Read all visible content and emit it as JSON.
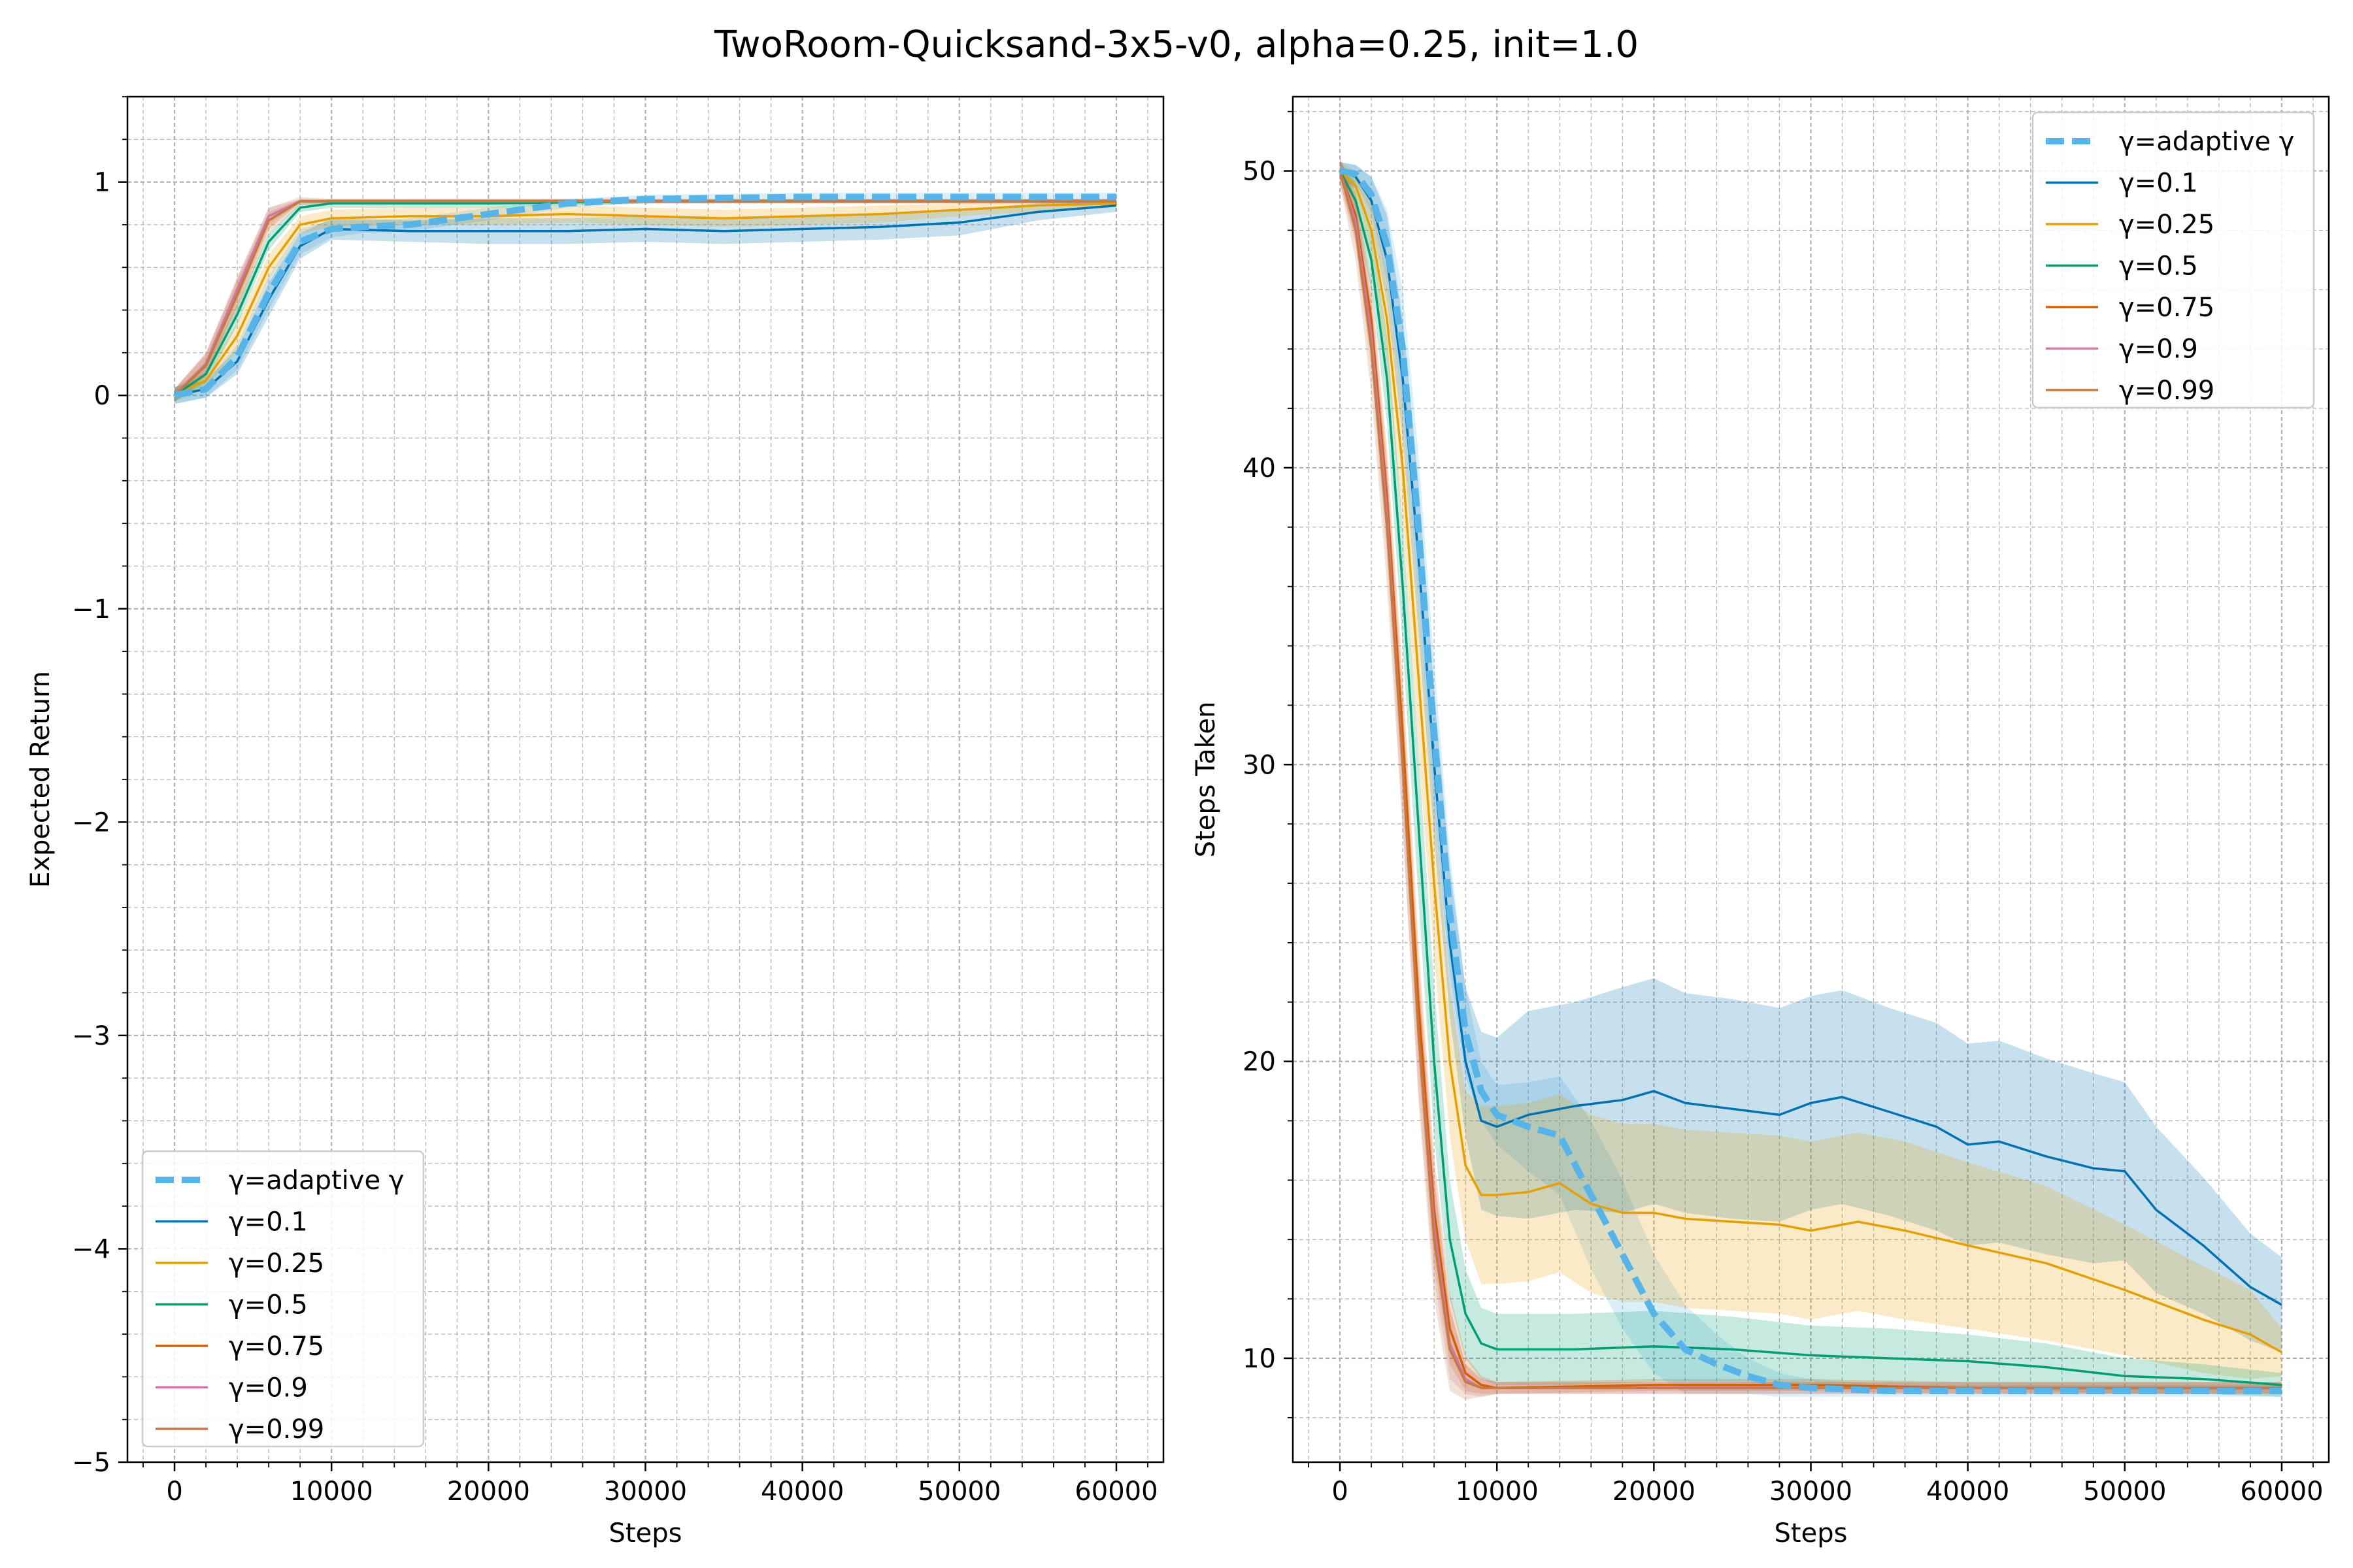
{
  "figure": {
    "suptitle": "TwoRoom-Quicksand-3x5-v0, alpha=0.25, init=1.0"
  },
  "colors": {
    "adaptive": "#56b4e9",
    "g0.1": "#0072b2",
    "g0.25": "#e69f00",
    "g0.5": "#009e73",
    "g0.75": "#d55e00",
    "g0.9": "#cc79a7",
    "g0.99": "#c67a3f"
  },
  "chart_data": [
    {
      "type": "line",
      "title": "",
      "xlabel": "Steps",
      "ylabel": "Expected Return",
      "xlim": [
        -3000,
        63000
      ],
      "ylim": [
        -5,
        1.4
      ],
      "xticks": [
        0,
        10000,
        20000,
        30000,
        40000,
        50000,
        60000
      ],
      "xtick_labels": [
        "0",
        "10000",
        "20000",
        "30000",
        "40000",
        "50000",
        "60000"
      ],
      "yticks": [
        -5,
        -4,
        -3,
        -2,
        -1,
        0,
        1
      ],
      "ytick_labels": [
        "−5",
        "−4",
        "−3",
        "−2",
        "−1",
        "0",
        "1"
      ],
      "grid": true,
      "legend_position": "lower-left",
      "series": [
        {
          "name": "γ=adaptive γ",
          "color_key": "adaptive",
          "dashed": true,
          "x": [
            0,
            2000,
            4000,
            6000,
            8000,
            10000,
            12000,
            15000,
            20000,
            25000,
            30000,
            40000,
            50000,
            60000
          ],
          "y": [
            0,
            0.03,
            0.18,
            0.48,
            0.72,
            0.78,
            0.79,
            0.8,
            0.85,
            0.9,
            0.92,
            0.93,
            0.93,
            0.93
          ],
          "band": [
            0.04,
            0.04,
            0.06,
            0.08,
            0.06,
            0.04,
            0.03,
            0.03,
            0.03,
            0.02,
            0.02,
            0.02,
            0.02,
            0.02
          ]
        },
        {
          "name": "γ=0.1",
          "color_key": "g0.1",
          "dashed": false,
          "x": [
            0,
            2000,
            4000,
            6000,
            8000,
            10000,
            15000,
            20000,
            25000,
            30000,
            35000,
            40000,
            45000,
            50000,
            55000,
            60000
          ],
          "y": [
            0,
            0.03,
            0.16,
            0.45,
            0.7,
            0.78,
            0.77,
            0.77,
            0.77,
            0.78,
            0.77,
            0.78,
            0.79,
            0.81,
            0.86,
            0.89
          ],
          "band": [
            0.04,
            0.04,
            0.06,
            0.08,
            0.06,
            0.05,
            0.05,
            0.06,
            0.06,
            0.06,
            0.06,
            0.06,
            0.06,
            0.06,
            0.04,
            0.03
          ]
        },
        {
          "name": "γ=0.25",
          "color_key": "g0.25",
          "dashed": false,
          "x": [
            0,
            2000,
            4000,
            6000,
            8000,
            10000,
            15000,
            20000,
            25000,
            30000,
            35000,
            40000,
            45000,
            50000,
            55000,
            60000
          ],
          "y": [
            0,
            0.07,
            0.28,
            0.6,
            0.8,
            0.83,
            0.84,
            0.84,
            0.85,
            0.84,
            0.83,
            0.84,
            0.85,
            0.87,
            0.89,
            0.9
          ],
          "band": [
            0.03,
            0.04,
            0.06,
            0.06,
            0.04,
            0.04,
            0.04,
            0.04,
            0.04,
            0.04,
            0.04,
            0.04,
            0.04,
            0.03,
            0.03,
            0.02
          ]
        },
        {
          "name": "γ=0.5",
          "color_key": "g0.5",
          "dashed": false,
          "x": [
            0,
            2000,
            4000,
            6000,
            8000,
            10000,
            15000,
            20000,
            30000,
            40000,
            50000,
            60000
          ],
          "y": [
            0,
            0.1,
            0.38,
            0.72,
            0.88,
            0.9,
            0.9,
            0.9,
            0.91,
            0.91,
            0.91,
            0.91
          ],
          "band": [
            0.03,
            0.04,
            0.05,
            0.04,
            0.02,
            0.02,
            0.02,
            0.02,
            0.01,
            0.01,
            0.01,
            0.01
          ]
        },
        {
          "name": "γ=0.75",
          "color_key": "g0.75",
          "dashed": false,
          "x": [
            0,
            2000,
            4000,
            6000,
            8000,
            10000,
            20000,
            30000,
            40000,
            50000,
            60000
          ],
          "y": [
            0,
            0.14,
            0.48,
            0.82,
            0.91,
            0.91,
            0.91,
            0.91,
            0.91,
            0.91,
            0.91
          ],
          "band": [
            0.03,
            0.05,
            0.06,
            0.04,
            0.01,
            0.01,
            0.01,
            0.01,
            0.01,
            0.01,
            0.01
          ]
        },
        {
          "name": "γ=0.9",
          "color_key": "g0.9",
          "dashed": false,
          "x": [
            0,
            2000,
            4000,
            6000,
            8000,
            10000,
            20000,
            30000,
            40000,
            50000,
            60000
          ],
          "y": [
            0,
            0.15,
            0.5,
            0.84,
            0.91,
            0.91,
            0.91,
            0.91,
            0.91,
            0.91,
            0.91
          ],
          "band": [
            0.03,
            0.05,
            0.06,
            0.04,
            0.01,
            0.01,
            0.01,
            0.01,
            0.01,
            0.01,
            0.01
          ]
        },
        {
          "name": "γ=0.99",
          "color_key": "g0.99",
          "dashed": false,
          "x": [
            0,
            2000,
            4000,
            6000,
            8000,
            10000,
            20000,
            30000,
            40000,
            50000,
            60000
          ],
          "y": [
            0,
            0.14,
            0.47,
            0.82,
            0.91,
            0.91,
            0.91,
            0.91,
            0.91,
            0.91,
            0.91
          ],
          "band": [
            0.03,
            0.06,
            0.08,
            0.06,
            0.02,
            0.01,
            0.01,
            0.01,
            0.01,
            0.01,
            0.01
          ]
        }
      ]
    },
    {
      "type": "line",
      "title": "",
      "xlabel": "Steps",
      "ylabel": "Steps Taken",
      "xlim": [
        -3000,
        63000
      ],
      "ylim": [
        6.5,
        52.5
      ],
      "xticks": [
        0,
        10000,
        20000,
        30000,
        40000,
        50000,
        60000
      ],
      "xtick_labels": [
        "0",
        "10000",
        "20000",
        "30000",
        "40000",
        "50000",
        "60000"
      ],
      "yticks": [
        10,
        20,
        30,
        40,
        50
      ],
      "ytick_labels": [
        "10",
        "20",
        "30",
        "40",
        "50"
      ],
      "grid": true,
      "legend_position": "top-right",
      "series": [
        {
          "name": "γ=adaptive γ",
          "color_key": "adaptive",
          "dashed": true,
          "x": [
            0,
            1000,
            2000,
            3000,
            4000,
            5000,
            6000,
            7000,
            8000,
            9000,
            10000,
            12000,
            14000,
            16000,
            18000,
            20000,
            22000,
            24000,
            26000,
            28000,
            30000,
            35000,
            40000,
            45000,
            50000,
            55000,
            60000
          ],
          "y": [
            50,
            49.9,
            49.2,
            47.5,
            44,
            38,
            31,
            25,
            21,
            19,
            18.2,
            17.8,
            17.5,
            15.5,
            13.5,
            11.5,
            10.3,
            9.8,
            9.4,
            9.1,
            9.0,
            8.9,
            8.9,
            8.9,
            8.9,
            8.9,
            8.9
          ],
          "band": [
            0.3,
            0.3,
            0.6,
            1.2,
            2.0,
            2.5,
            2.5,
            2.0,
            1.5,
            1.0,
            1.0,
            1.5,
            2.0,
            2.5,
            2.5,
            2.0,
            1.5,
            1.0,
            0.6,
            0.4,
            0.3,
            0.2,
            0.2,
            0.2,
            0.2,
            0.2,
            0.2
          ]
        },
        {
          "name": "γ=0.1",
          "color_key": "g0.1",
          "dashed": false,
          "x": [
            0,
            1000,
            2000,
            3000,
            4000,
            5000,
            6000,
            7000,
            8000,
            9000,
            10000,
            12000,
            15000,
            18000,
            20000,
            22000,
            25000,
            28000,
            30000,
            32000,
            35000,
            38000,
            40000,
            42000,
            45000,
            48000,
            50000,
            52000,
            55000,
            58000,
            60000
          ],
          "y": [
            50,
            49.8,
            49,
            47,
            43,
            37,
            30,
            24,
            20,
            18,
            17.8,
            18.2,
            18.5,
            18.7,
            19.0,
            18.6,
            18.4,
            18.2,
            18.6,
            18.8,
            18.3,
            17.8,
            17.2,
            17.3,
            16.8,
            16.4,
            16.3,
            15.0,
            13.8,
            12.4,
            11.8
          ],
          "band": [
            0.3,
            0.4,
            0.8,
            1.5,
            2.0,
            2.5,
            2.5,
            2.5,
            2.5,
            3.0,
            3.0,
            3.5,
            3.5,
            3.8,
            3.8,
            3.7,
            3.7,
            3.6,
            3.6,
            3.6,
            3.5,
            3.5,
            3.4,
            3.4,
            3.3,
            3.2,
            3.0,
            2.8,
            2.3,
            1.8,
            1.6
          ]
        },
        {
          "name": "γ=0.25",
          "color_key": "g0.25",
          "dashed": false,
          "x": [
            0,
            1000,
            2000,
            3000,
            4000,
            5000,
            6000,
            7000,
            8000,
            9000,
            10000,
            12000,
            14000,
            16000,
            18000,
            20000,
            22000,
            25000,
            28000,
            30000,
            33000,
            36000,
            40000,
            45000,
            50000,
            55000,
            58000,
            60000
          ],
          "y": [
            50,
            49.5,
            48,
            45,
            40,
            33,
            26,
            20,
            16.5,
            15.5,
            15.5,
            15.6,
            15.9,
            15.2,
            14.9,
            14.9,
            14.7,
            14.6,
            14.5,
            14.3,
            14.6,
            14.3,
            13.8,
            13.2,
            12.3,
            11.3,
            10.8,
            10.2
          ],
          "band": [
            0.3,
            0.5,
            1.0,
            1.5,
            2.0,
            2.5,
            2.5,
            2.5,
            2.5,
            3.0,
            3.0,
            3.0,
            3.0,
            3.0,
            3.0,
            3.0,
            3.0,
            3.0,
            3.0,
            3.0,
            3.0,
            3.0,
            2.8,
            2.6,
            2.2,
            1.8,
            1.5,
            0.8
          ]
        },
        {
          "name": "γ=0.5",
          "color_key": "g0.5",
          "dashed": false,
          "x": [
            0,
            1000,
            2000,
            3000,
            4000,
            5000,
            6000,
            7000,
            8000,
            9000,
            10000,
            15000,
            20000,
            25000,
            30000,
            35000,
            40000,
            45000,
            50000,
            55000,
            60000
          ],
          "y": [
            50,
            49,
            47,
            43,
            36,
            28,
            20,
            14,
            11.5,
            10.5,
            10.3,
            10.3,
            10.4,
            10.3,
            10.1,
            10.0,
            9.9,
            9.7,
            9.4,
            9.3,
            9.1
          ],
          "band": [
            0.3,
            0.6,
            1.0,
            1.5,
            2.0,
            2.5,
            2.5,
            2.0,
            1.5,
            1.2,
            1.2,
            1.2,
            1.2,
            1.1,
            1.0,
            1.0,
            0.9,
            0.8,
            0.6,
            0.5,
            0.4
          ]
        },
        {
          "name": "γ=0.75",
          "color_key": "g0.75",
          "dashed": false,
          "x": [
            0,
            1000,
            2000,
            3000,
            4000,
            5000,
            6000,
            7000,
            8000,
            9000,
            10000,
            20000,
            30000,
            40000,
            50000,
            60000
          ],
          "y": [
            50,
            48.5,
            45,
            39,
            31,
            22,
            15,
            11,
            9.5,
            9.1,
            9.0,
            9.1,
            9.1,
            9.0,
            9.0,
            9.0
          ],
          "band": [
            0.4,
            0.8,
            1.2,
            1.6,
            2.0,
            2.0,
            1.8,
            1.2,
            0.6,
            0.3,
            0.2,
            0.2,
            0.2,
            0.2,
            0.2,
            0.2
          ]
        },
        {
          "name": "γ=0.9",
          "color_key": "g0.9",
          "dashed": false,
          "x": [
            0,
            1000,
            2000,
            3000,
            4000,
            5000,
            6000,
            7000,
            8000,
            9000,
            10000,
            20000,
            30000,
            40000,
            50000,
            60000
          ],
          "y": [
            50,
            48.3,
            44.5,
            38.5,
            30,
            21,
            14.5,
            10.5,
            9.3,
            9.0,
            9.0,
            9.0,
            9.0,
            9.0,
            9.0,
            9.0
          ],
          "band": [
            0.4,
            0.8,
            1.2,
            1.6,
            2.0,
            2.0,
            1.8,
            1.2,
            0.5,
            0.3,
            0.2,
            0.2,
            0.2,
            0.2,
            0.2,
            0.2
          ]
        },
        {
          "name": "γ=0.99",
          "color_key": "g0.99",
          "dashed": false,
          "x": [
            0,
            1000,
            2000,
            3000,
            4000,
            5000,
            6000,
            7000,
            8000,
            9000,
            10000,
            20000,
            30000,
            40000,
            50000,
            60000
          ],
          "y": [
            50,
            48,
            44,
            38,
            30,
            21,
            14,
            10.3,
            9.2,
            9.0,
            9.0,
            9.0,
            9.0,
            9.0,
            9.0,
            9.0
          ],
          "band": [
            0.5,
            1.0,
            1.5,
            2.0,
            2.3,
            2.3,
            2.0,
            1.4,
            0.6,
            0.3,
            0.2,
            0.2,
            0.2,
            0.2,
            0.2,
            0.2
          ]
        }
      ]
    }
  ]
}
